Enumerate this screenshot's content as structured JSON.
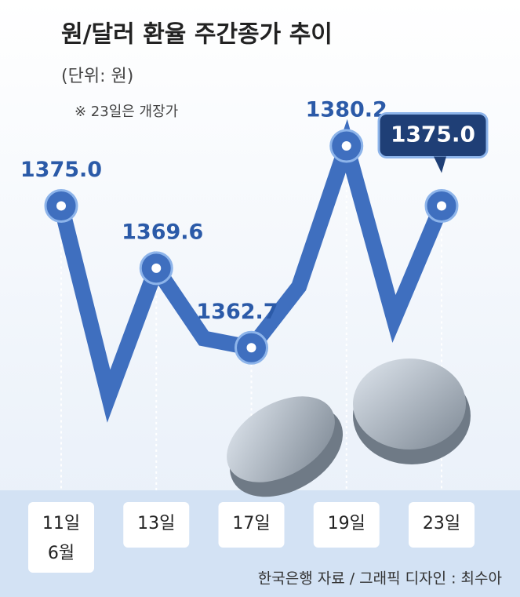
{
  "chart_data": {
    "type": "line",
    "title": "원/달러 환율 주간종가 추이",
    "subtitle": "(단위: 원)",
    "note": "※ 23일은 개장가",
    "source": "한국은행 자료 / 그래픽 디자인 : 최수아",
    "categories": [
      "11일",
      null,
      "13일",
      null,
      "17일",
      null,
      "19일",
      null,
      "23일"
    ],
    "month_label": "6월",
    "values": [
      1375.0,
      1358.5,
      1369.6,
      1363.5,
      1362.7,
      1368.0,
      1380.2,
      1365.2,
      1375.0
    ],
    "value_labels": [
      "1375.0",
      null,
      "1369.6",
      null,
      "1362.7",
      null,
      "1380.2",
      null,
      "1375.0"
    ],
    "color": "#3f6fbf"
  }
}
